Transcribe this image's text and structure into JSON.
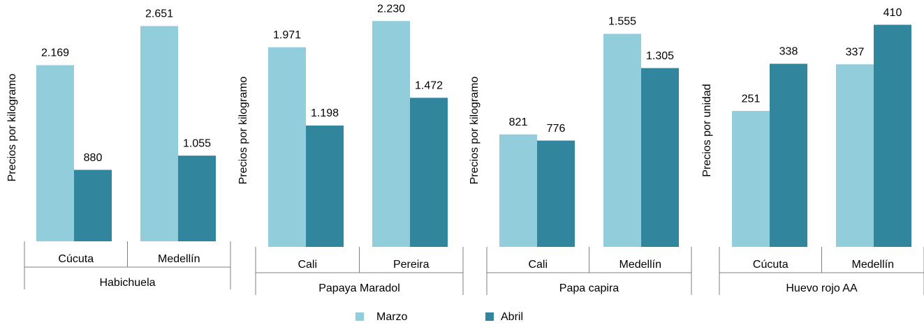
{
  "chart_data": [
    {
      "type": "bar",
      "y_label": "Precios por kilogramo",
      "x_label": "Habichuela",
      "categories": [
        "Cúcuta",
        "Medellín"
      ],
      "ylim": [
        0,
        2800
      ],
      "series": [
        {
          "name": "Marzo",
          "color": "#92cddc",
          "values": [
            2169,
            2651
          ],
          "value_labels": [
            "2.169",
            "2.651"
          ]
        },
        {
          "name": "Abril",
          "color": "#31859c",
          "values": [
            880,
            1055
          ],
          "value_labels": [
            "880",
            "1.055"
          ]
        }
      ]
    },
    {
      "type": "bar",
      "y_label": "Precios por kilogramo",
      "x_label": "Papaya Maradol",
      "categories": [
        "Cali",
        "Pereira"
      ],
      "ylim": [
        0,
        2300
      ],
      "series": [
        {
          "name": "Marzo",
          "color": "#92cddc",
          "values": [
            1971,
            2230
          ],
          "value_labels": [
            "1.971",
            "2.230"
          ]
        },
        {
          "name": "Abril",
          "color": "#31859c",
          "values": [
            1198,
            1472
          ],
          "value_labels": [
            "1.198",
            "1.472"
          ]
        }
      ]
    },
    {
      "type": "bar",
      "y_label": "Precios por kilogramo",
      "x_label": "Papa capira",
      "categories": [
        "Cali",
        "Medellín"
      ],
      "ylim": [
        0,
        1700
      ],
      "series": [
        {
          "name": "Marzo",
          "color": "#92cddc",
          "values": [
            821,
            1555
          ],
          "value_labels": [
            "821",
            "1.555"
          ]
        },
        {
          "name": "Abril",
          "color": "#31859c",
          "values": [
            776,
            1305
          ],
          "value_labels": [
            "776",
            "1.305"
          ]
        }
      ]
    },
    {
      "type": "bar",
      "y_label": "Precios por unidad",
      "x_label": "Huevo rojo AA",
      "categories": [
        "Cúcuta",
        "Medellín"
      ],
      "ylim": [
        0,
        430
      ],
      "series": [
        {
          "name": "Marzo",
          "color": "#92cddc",
          "values": [
            251,
            337
          ],
          "value_labels": [
            "251",
            "337"
          ]
        },
        {
          "name": "Abril",
          "color": "#31859c",
          "values": [
            338,
            410
          ],
          "value_labels": [
            "338",
            "410"
          ]
        }
      ]
    }
  ]
}
